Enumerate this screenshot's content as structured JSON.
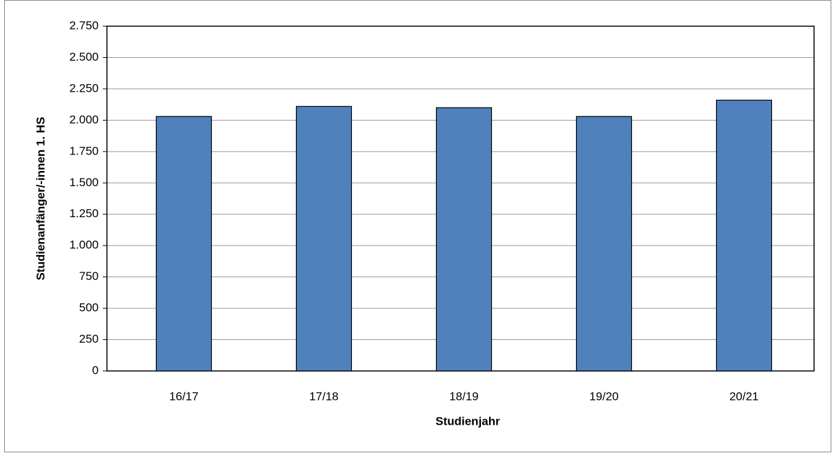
{
  "chart_data": {
    "type": "bar",
    "x_label": "Studienjahr",
    "y_label": "Studienanfänger/-innen 1. HS",
    "categories": [
      "16/17",
      "17/18",
      "18/19",
      "19/20",
      "20/21"
    ],
    "values": [
      2030,
      2110,
      2100,
      2030,
      2160
    ],
    "color": "#4f81bd",
    "ylim": [
      0,
      2750
    ],
    "yticks": [
      0,
      250,
      500,
      750,
      {
        "value": 1000,
        "label": "1.000"
      },
      {
        "value": 1250,
        "label": "1.250"
      },
      {
        "value": 1500,
        "label": "1.500"
      },
      {
        "value": 1750,
        "label": "1.750"
      },
      {
        "value": 2000,
        "label": "2.000"
      },
      {
        "value": 2250,
        "label": "2.250"
      },
      {
        "value": 2500,
        "label": "2.500"
      },
      {
        "value": 2750,
        "label": "2.750"
      }
    ],
    "grid": true
  }
}
